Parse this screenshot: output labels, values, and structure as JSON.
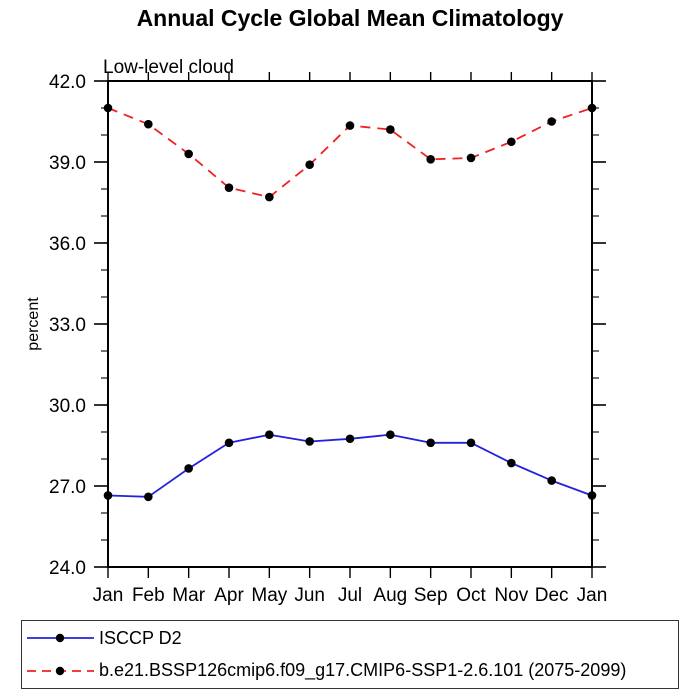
{
  "chart_data": {
    "type": "line",
    "title": "Annual Cycle Global Mean Climatology",
    "subtitle": "Low-level cloud",
    "ylabel": "percent",
    "xlabel": "",
    "categories": [
      "Jan",
      "Feb",
      "Mar",
      "Apr",
      "May",
      "Jun",
      "Jul",
      "Aug",
      "Sep",
      "Oct",
      "Nov",
      "Dec",
      "Jan"
    ],
    "ylim": [
      24.0,
      42.0
    ],
    "ytick_major_step": 3.0,
    "ytick_minor_step": 1.0,
    "ytick_label_format": "one-decimal",
    "grid": false,
    "legend_position": "bottom-left-box",
    "axis_color": "#000000",
    "marker": "filled-circle",
    "marker_color": "#000000",
    "series": [
      {
        "name": "ISCCP D2",
        "color": "#2222dd",
        "line_style": "solid",
        "values": [
          26.65,
          26.6,
          27.65,
          28.6,
          28.9,
          28.65,
          28.75,
          28.9,
          28.6,
          28.6,
          27.85,
          27.2,
          26.65
        ]
      },
      {
        "name": "b.e21.BSSP126cmip6.f09_g17.CMIP6-SSP1-2.6.101 (2075-2099)",
        "color": "#ee2222",
        "line_style": "dashed",
        "values": [
          41.0,
          40.4,
          39.3,
          38.05,
          37.7,
          38.9,
          40.35,
          40.2,
          39.1,
          39.15,
          39.75,
          40.5,
          41.0
        ]
      }
    ]
  }
}
